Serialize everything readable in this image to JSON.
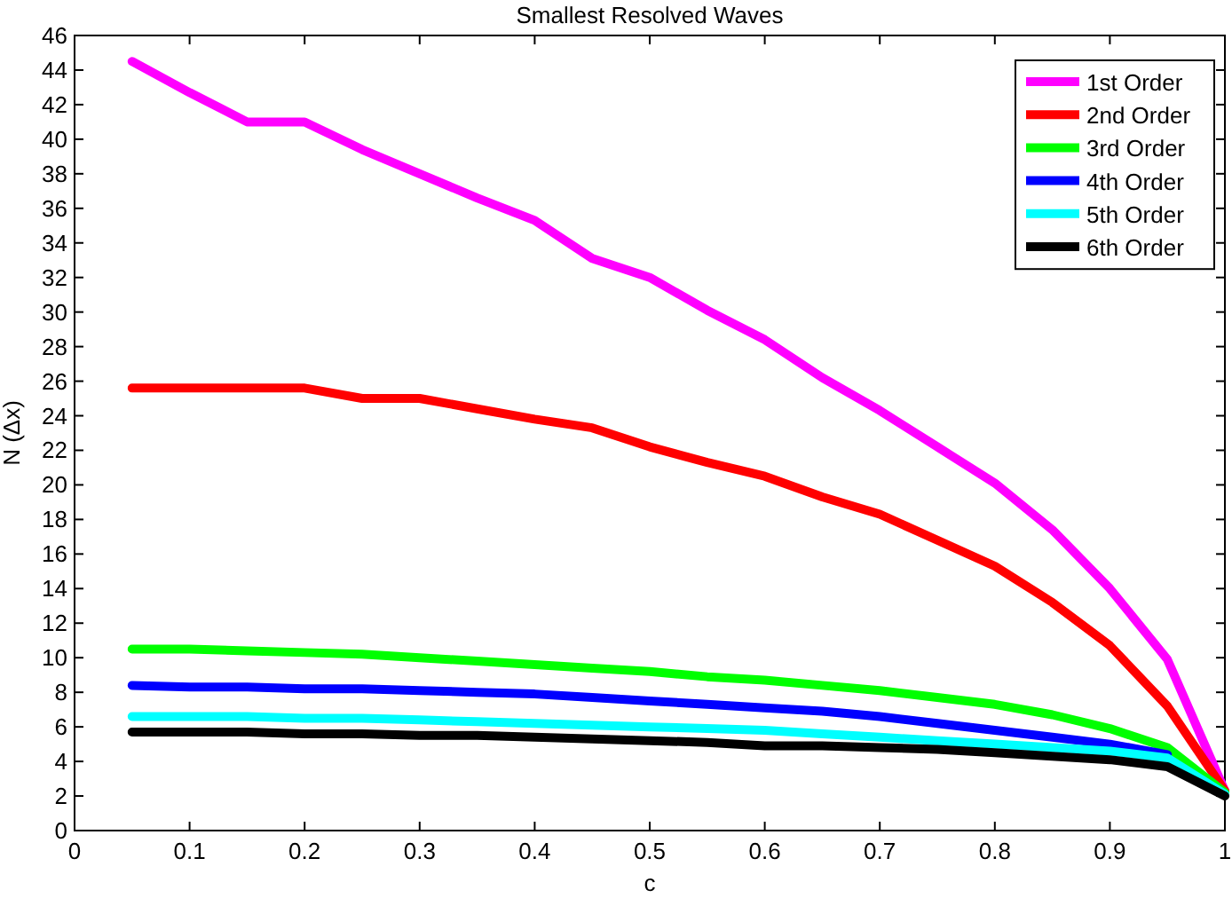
{
  "chart_data": {
    "type": "line",
    "title": "Smallest Resolved Waves",
    "xlabel": "c",
    "ylabel": "N (Δx)",
    "x": [
      0.05,
      0.1,
      0.15,
      0.2,
      0.25,
      0.3,
      0.35,
      0.4,
      0.45,
      0.5,
      0.55,
      0.6,
      0.65,
      0.7,
      0.75,
      0.8,
      0.85,
      0.9,
      0.95,
      1
    ],
    "series": [
      {
        "name": "1st Order",
        "color": "#ff00ff",
        "values": [
          44.5,
          42.7,
          41,
          41,
          39.4,
          38,
          36.6,
          35.3,
          33.1,
          32,
          30.1,
          28.4,
          26.2,
          24.3,
          22.2,
          20.1,
          17.4,
          14,
          9.9,
          2.3
        ]
      },
      {
        "name": "2nd Order",
        "color": "#ff0000",
        "values": [
          25.6,
          25.6,
          25.6,
          25.6,
          25,
          25,
          24.4,
          23.8,
          23.3,
          22.2,
          21.3,
          20.5,
          19.3,
          18.3,
          16.8,
          15.3,
          13.2,
          10.7,
          7.2,
          2.3
        ]
      },
      {
        "name": "3rd Order",
        "color": "#00ff00",
        "values": [
          10.5,
          10.5,
          10.4,
          10.3,
          10.2,
          10,
          9.8,
          9.6,
          9.4,
          9.2,
          8.9,
          8.7,
          8.4,
          8.1,
          7.7,
          7.3,
          6.7,
          5.9,
          4.8,
          2.2
        ]
      },
      {
        "name": "4th Order",
        "color": "#0000ff",
        "values": [
          8.4,
          8.3,
          8.3,
          8.2,
          8.2,
          8.1,
          8,
          7.9,
          7.7,
          7.5,
          7.3,
          7.1,
          6.9,
          6.6,
          6.2,
          5.8,
          5.4,
          5,
          4.4,
          null
        ]
      },
      {
        "name": "5th Order",
        "color": "#00ffff",
        "values": [
          6.6,
          6.6,
          6.6,
          6.5,
          6.5,
          6.4,
          6.3,
          6.2,
          6.1,
          6,
          5.9,
          5.8,
          5.6,
          5.4,
          5.2,
          5,
          4.8,
          4.6,
          4.2,
          2.1
        ]
      },
      {
        "name": "6th Order",
        "color": "#000000",
        "values": [
          5.7,
          5.7,
          5.7,
          5.6,
          5.6,
          5.5,
          5.5,
          5.4,
          5.3,
          5.2,
          5.1,
          4.9,
          4.9,
          4.8,
          4.7,
          4.5,
          4.3,
          4.1,
          3.7,
          2.0
        ]
      }
    ],
    "xlim": [
      0,
      1
    ],
    "xticks": [
      0,
      0.1,
      0.2,
      0.3,
      0.4,
      0.5,
      0.6,
      0.7,
      0.8,
      0.9,
      1
    ],
    "ylim": [
      0,
      46
    ],
    "yticks": [
      0,
      2,
      4,
      6,
      8,
      10,
      12,
      14,
      16,
      18,
      20,
      22,
      24,
      26,
      28,
      30,
      32,
      34,
      36,
      38,
      40,
      42,
      44,
      46
    ],
    "legend": "top right",
    "line_style": "solid",
    "marker": "none",
    "grid": false
  }
}
